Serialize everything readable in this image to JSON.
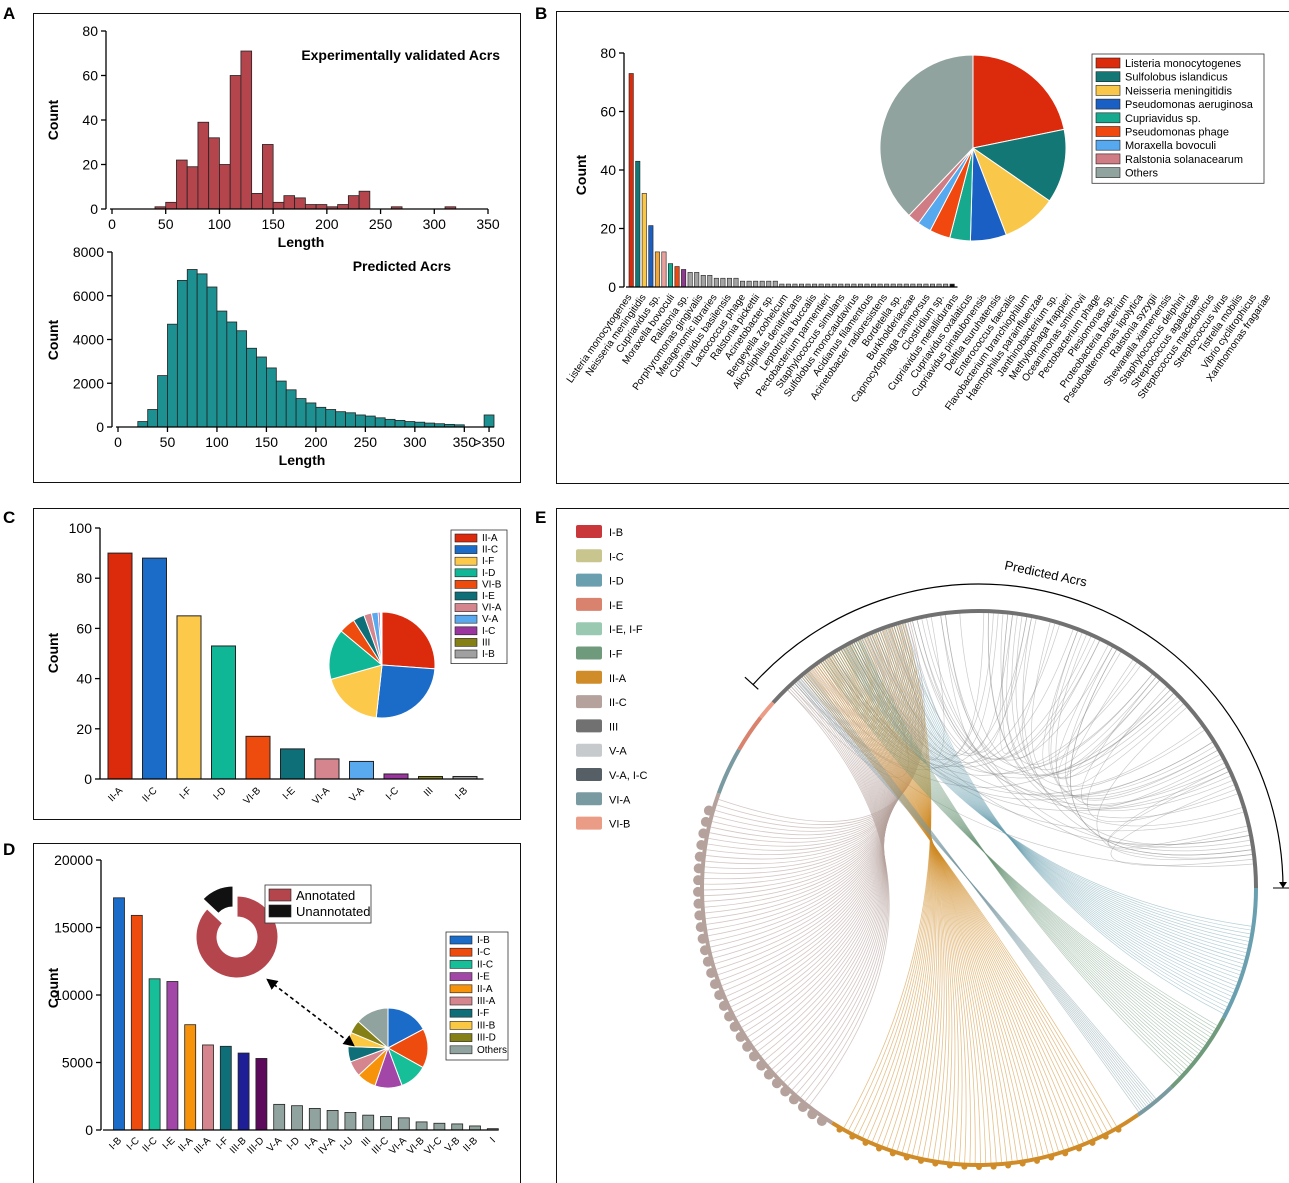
{
  "panel_letters": {
    "a": "A",
    "b": "B",
    "c": "C",
    "d": "D",
    "e": "E"
  },
  "chart_data": [
    {
      "id": "A_top",
      "type": "bar",
      "title": "Experimentally validated Acrs",
      "xlabel": "Length",
      "ylabel": "Count",
      "xlim": [
        0,
        350
      ],
      "ylim": [
        0,
        80
      ],
      "xticks": [
        0,
        50,
        100,
        150,
        200,
        250,
        300,
        350
      ],
      "yticks": [
        0,
        20,
        40,
        60,
        80
      ],
      "bin_width": 10,
      "color": "#b5454d",
      "bins": [
        {
          "start": 40,
          "value": 1
        },
        {
          "start": 50,
          "value": 3
        },
        {
          "start": 60,
          "value": 22
        },
        {
          "start": 70,
          "value": 19
        },
        {
          "start": 80,
          "value": 39
        },
        {
          "start": 90,
          "value": 32
        },
        {
          "start": 100,
          "value": 20
        },
        {
          "start": 110,
          "value": 60
        },
        {
          "start": 120,
          "value": 71
        },
        {
          "start": 130,
          "value": 7
        },
        {
          "start": 140,
          "value": 29
        },
        {
          "start": 150,
          "value": 3
        },
        {
          "start": 160,
          "value": 6
        },
        {
          "start": 170,
          "value": 5
        },
        {
          "start": 180,
          "value": 2
        },
        {
          "start": 190,
          "value": 2
        },
        {
          "start": 200,
          "value": 1
        },
        {
          "start": 210,
          "value": 2
        },
        {
          "start": 220,
          "value": 6
        },
        {
          "start": 230,
          "value": 8
        },
        {
          "start": 260,
          "value": 1
        },
        {
          "start": 310,
          "value": 1
        }
      ]
    },
    {
      "id": "A_bottom",
      "type": "bar",
      "title": "Predicted Acrs",
      "xlabel": "Length",
      "ylabel": "Count",
      "xlim": [
        0,
        380
      ],
      "ylim": [
        0,
        8000
      ],
      "xticks": [
        0,
        50,
        100,
        150,
        200,
        250,
        300,
        350
      ],
      "overflow_tick": ">350",
      "yticks": [
        0,
        2000,
        4000,
        6000,
        8000
      ],
      "bin_width": 10,
      "color": "#1d9191",
      "bins": [
        {
          "start": 20,
          "value": 250
        },
        {
          "start": 30,
          "value": 800
        },
        {
          "start": 40,
          "value": 2350
        },
        {
          "start": 50,
          "value": 4700
        },
        {
          "start": 60,
          "value": 6700
        },
        {
          "start": 70,
          "value": 7200
        },
        {
          "start": 80,
          "value": 7000
        },
        {
          "start": 90,
          "value": 6400
        },
        {
          "start": 100,
          "value": 5300
        },
        {
          "start": 110,
          "value": 4800
        },
        {
          "start": 120,
          "value": 4400
        },
        {
          "start": 130,
          "value": 3600
        },
        {
          "start": 140,
          "value": 3200
        },
        {
          "start": 150,
          "value": 2700
        },
        {
          "start": 160,
          "value": 2100
        },
        {
          "start": 170,
          "value": 1700
        },
        {
          "start": 180,
          "value": 1300
        },
        {
          "start": 190,
          "value": 1100
        },
        {
          "start": 200,
          "value": 900
        },
        {
          "start": 210,
          "value": 800
        },
        {
          "start": 220,
          "value": 700
        },
        {
          "start": 230,
          "value": 650
        },
        {
          "start": 240,
          "value": 550
        },
        {
          "start": 250,
          "value": 500
        },
        {
          "start": 260,
          "value": 420
        },
        {
          "start": 270,
          "value": 350
        },
        {
          "start": 280,
          "value": 300
        },
        {
          "start": 290,
          "value": 250
        },
        {
          "start": 300,
          "value": 220
        },
        {
          "start": 310,
          "value": 180
        },
        {
          "start": 320,
          "value": 150
        },
        {
          "start": 330,
          "value": 120
        },
        {
          "start": 340,
          "value": 100
        },
        {
          "start": 370,
          "value": 550
        }
      ]
    },
    {
      "id": "B",
      "type": "bar",
      "ylabel": "Count",
      "ylim": [
        0,
        80
      ],
      "yticks": [
        0,
        20,
        40,
        60,
        80
      ],
      "bars": [
        {
          "name": "Listeria monocytogenes",
          "value": 73,
          "color": "#dc2a0d"
        },
        {
          "name": "Sulfolobus islandicus",
          "value": 43,
          "color": "#137775"
        },
        {
          "name": "Neisseria meningitidis",
          "value": 32,
          "color": "#f9c84a"
        },
        {
          "name": "Pseudomonas aeruginosa",
          "value": 21,
          "color": "#1a60c4"
        },
        {
          "name": "Cupriavidus sp.",
          "value": 12,
          "color": "#f0a73b"
        },
        {
          "name": "Pseudomonas phage",
          "value": 12,
          "color": "#e7a09c"
        },
        {
          "name": "Moraxella bovoculi",
          "value": 8,
          "color": "#16a98e"
        },
        {
          "name": "Ralstonia solanacearum",
          "value": 7,
          "color": "#f0480e"
        },
        {
          "name": "Ralstonia sp.",
          "value": 6,
          "color": "#8d3b8e"
        },
        {
          "name": "Porphyromonas gingivalis",
          "value": 5,
          "color": "#a3a3a3"
        },
        {
          "name": "Metagenomic libraries",
          "value": 5,
          "color": "#a3a3a3"
        },
        {
          "name": "Cupriavidus basilensis",
          "value": 4,
          "color": "#a3a3a3"
        },
        {
          "name": "Lactococcus phage",
          "value": 4,
          "color": "#a3a3a3"
        },
        {
          "name": "Ralstonia pickettii",
          "value": 3,
          "color": "#a3a3a3"
        },
        {
          "name": "Acinetobacter sp.",
          "value": 3,
          "color": "#a3a3a3"
        },
        {
          "name": "Bergeyella zoohelcum",
          "value": 3,
          "color": "#a3a3a3"
        },
        {
          "name": "Alicycliphilus denitrificans",
          "value": 3,
          "color": "#a3a3a3"
        },
        {
          "name": "Leptotrichia buccalis",
          "value": 2,
          "color": "#a3a3a3"
        },
        {
          "name": "Pectobacterium parmentieri",
          "value": 2,
          "color": "#a3a3a3"
        },
        {
          "name": "Staphylococcus simulans",
          "value": 2,
          "color": "#a3a3a3"
        },
        {
          "name": "Sulfolobus monocaudavirus",
          "value": 2,
          "color": "#a3a3a3"
        },
        {
          "name": "Acidianus filamentous",
          "value": 2,
          "color": "#a3a3a3"
        },
        {
          "name": "Acinetobacter radioresistens",
          "value": 2,
          "color": "#a3a3a3"
        },
        {
          "name": "Bordetella sp.",
          "value": 1,
          "color": "#a3a3a3"
        },
        {
          "name": "Burkholderiaceae",
          "value": 1,
          "color": "#a3a3a3"
        },
        {
          "name": "Capnocytophaga canimorsus",
          "value": 1,
          "color": "#a3a3a3"
        },
        {
          "name": "Clostridium sp.",
          "value": 1,
          "color": "#a3a3a3"
        },
        {
          "name": "Cupriavidus metallidurans",
          "value": 1,
          "color": "#a3a3a3"
        },
        {
          "name": "Cupriavidus oxalaticus",
          "value": 1,
          "color": "#a3a3a3"
        },
        {
          "name": "Cupriavidus pinatubonensis",
          "value": 1,
          "color": "#a3a3a3"
        },
        {
          "name": "Delftia tsuruhatensis",
          "value": 1,
          "color": "#a3a3a3"
        },
        {
          "name": "Enterococcus faecalis",
          "value": 1,
          "color": "#a3a3a3"
        },
        {
          "name": "Flavobacterium branchiophilum",
          "value": 1,
          "color": "#a3a3a3"
        },
        {
          "name": "Haemophilus parainfluenzae",
          "value": 1,
          "color": "#a3a3a3"
        },
        {
          "name": "Janthinobacterium sp.",
          "value": 1,
          "color": "#a3a3a3"
        },
        {
          "name": "Methylophaga frappieri",
          "value": 1,
          "color": "#a3a3a3"
        },
        {
          "name": "Oceanimonas smirnovii",
          "value": 1,
          "color": "#a3a3a3"
        },
        {
          "name": "Pectobacterium phage",
          "value": 1,
          "color": "#a3a3a3"
        },
        {
          "name": "Plesiomonas sp.",
          "value": 1,
          "color": "#a3a3a3"
        },
        {
          "name": "Proteobacteria bacterium",
          "value": 1,
          "color": "#a3a3a3"
        },
        {
          "name": "Pseudoalteromonas lipolytica",
          "value": 1,
          "color": "#a3a3a3"
        },
        {
          "name": "Ralstonia syzygii",
          "value": 1,
          "color": "#a3a3a3"
        },
        {
          "name": "Shewanella xiamenensis",
          "value": 1,
          "color": "#a3a3a3"
        },
        {
          "name": "Staphylococcus delphini",
          "value": 1,
          "color": "#a3a3a3"
        },
        {
          "name": "Streptococcus agalactiae",
          "value": 1,
          "color": "#a3a3a3"
        },
        {
          "name": "Streptococcus macedonicus",
          "value": 1,
          "color": "#a3a3a3"
        },
        {
          "name": "Streptococcus virus",
          "value": 1,
          "color": "#a3a3a3"
        },
        {
          "name": "Tistrella mobilis",
          "value": 1,
          "color": "#a3a3a3"
        },
        {
          "name": "Vibrio cyclitrophicus",
          "value": 1,
          "color": "#a3a3a3"
        },
        {
          "name": "Xanthomonas fragariae",
          "value": 1,
          "color": "#111111"
        }
      ],
      "tick_labels": [
        "Listeria monocytogenes",
        "Neisseria meningitidis",
        "Cupriavidus sp.",
        "Moraxella bovoculi",
        "Ralstonia sp.",
        "Porphyromonas gingivalis",
        "Metagenomic libraries",
        "Cupriavidus basilensis",
        "Lactococcus phage",
        "Ralstonia pickettii",
        "Acinetobacter sp.",
        "Bergeyella zoohelcum",
        "Alicycliphilus denitrificans",
        "Leptotrichia buccalis",
        "Pectobacterium parmentieri",
        "Staphylococcus simulans",
        "Sulfolobus monocaudavirus",
        "Acidianus filamentous",
        "Acinetobacter radioresistens",
        "Bordetella sp.",
        "Burkholderiaceae",
        "Capnocytophaga canimorsus",
        "Clostridium sp.",
        "Cupriavidus metallidurans",
        "Cupriavidus oxalaticus",
        "Cupriavidus pinatubonensis",
        "Delftia tsuruhatensis",
        "Enterococcus faecalis",
        "Flavobacterium branchiophilum",
        "Haemophilus parainfluenzae",
        "Janthinobacterium sp.",
        "Methylophaga frappieri",
        "Oceanimonas smirnovii",
        "Pectobacterium phage",
        "Plesiomonas sp.",
        "Proteobacteria bacterium",
        "Pseudoalteromonas lipolytica",
        "Ralstonia syzygii",
        "Shewanella xiamenensis",
        "Staphylococcus delphini",
        "Streptococcus agalactiae",
        "Streptococcus macedonicus",
        "Streptococcus virus",
        "Tistrella mobilis",
        "Vibrio cyclitrophicus",
        "Xanthomonas fragariae"
      ],
      "pie": [
        {
          "name": "Listeria monocytogenes",
          "value": 73,
          "color": "#dc2a0d"
        },
        {
          "name": "Sulfolobus islandicus",
          "value": 43,
          "color": "#137775"
        },
        {
          "name": "Neisseria meningitidis",
          "value": 32,
          "color": "#f9c84a"
        },
        {
          "name": "Pseudomonas aeruginosa",
          "value": 21,
          "color": "#1a60c4"
        },
        {
          "name": "Cupriavidus sp.",
          "value": 12,
          "color": "#16a98e"
        },
        {
          "name": "Pseudomonas phage",
          "value": 12,
          "color": "#f0480e"
        },
        {
          "name": "Moraxella bovoculi",
          "value": 8,
          "color": "#56a8ef"
        },
        {
          "name": "Ralstonia solanacearum",
          "value": 7,
          "color": "#d07c84"
        },
        {
          "name": "Others",
          "value": 127,
          "color": "#91a39e"
        }
      ],
      "legend_placement": "top-right"
    },
    {
      "id": "C",
      "type": "bar",
      "ylabel": "Count",
      "ylim": [
        0,
        100
      ],
      "yticks": [
        0,
        20,
        40,
        60,
        80,
        100
      ],
      "categories": [
        "II-A",
        "II-C",
        "I-F",
        "I-D",
        "VI-B",
        "I-E",
        "VI-A",
        "V-A",
        "I-C",
        "III",
        "I-B"
      ],
      "values": [
        90,
        88,
        65,
        53,
        17,
        12,
        8,
        7,
        2,
        1,
        1
      ],
      "colors": [
        "#dc2a0d",
        "#1a6cc8",
        "#fcc94a",
        "#10b797",
        "#ee4b0f",
        "#0f6f78",
        "#d4858e",
        "#59a9ee",
        "#9a35a0",
        "#858016",
        "#a0a0a0"
      ],
      "legend_placement": "right"
    },
    {
      "id": "D",
      "type": "bar",
      "ylabel": "Count",
      "ylim": [
        0,
        20000
      ],
      "yticks": [
        0,
        5000,
        10000,
        15000,
        20000
      ],
      "categories": [
        "I-B",
        "I-C",
        "II-C",
        "I-E",
        "II-A",
        "III-A",
        "I-F",
        "III-B",
        "III-D",
        "V-A",
        "I-D",
        "I-A",
        "IV-A",
        "I-U",
        "III",
        "III-C",
        "VI-A",
        "VI-B",
        "VI-C",
        "V-B",
        "II-B",
        "I"
      ],
      "values": [
        17200,
        15900,
        11200,
        11000,
        7800,
        6300,
        6200,
        5700,
        5300,
        1900,
        1800,
        1600,
        1450,
        1300,
        1100,
        1000,
        900,
        600,
        500,
        450,
        300,
        100
      ],
      "colors": [
        "#1a6cc8",
        "#ee4b0f",
        "#16bf98",
        "#a247a8",
        "#f7920b",
        "#d4858e",
        "#0f6f78",
        "#1e1f96",
        "#5e0a5c",
        "#91a39e",
        "#91a39e",
        "#91a39e",
        "#91a39e",
        "#91a39e",
        "#91a39e",
        "#91a39e",
        "#91a39e",
        "#91a39e",
        "#91a39e",
        "#91a39e",
        "#91a39e",
        "#91a39e"
      ],
      "donut": [
        {
          "name": "Annotated",
          "value": 87,
          "color": "#b5454d"
        },
        {
          "name": "Unannotated",
          "value": 13,
          "color": "#111111"
        }
      ],
      "pie": [
        {
          "name": "I-B",
          "value": 17.2,
          "color": "#1a6cc8"
        },
        {
          "name": "I-C",
          "value": 15.9,
          "color": "#ee4b0f"
        },
        {
          "name": "II-C",
          "value": 11.2,
          "color": "#16bf98"
        },
        {
          "name": "I-E",
          "value": 11.0,
          "color": "#a247a8"
        },
        {
          "name": "II-A",
          "value": 7.8,
          "color": "#f7920b"
        },
        {
          "name": "III-A",
          "value": 6.3,
          "color": "#d4858e"
        },
        {
          "name": "I-F",
          "value": 6.2,
          "color": "#0f6f78"
        },
        {
          "name": "III-B",
          "value": 5.7,
          "color": "#fbc842"
        },
        {
          "name": "III-D",
          "value": 5.3,
          "color": "#858016"
        },
        {
          "name": "Others",
          "value": 13.4,
          "color": "#91a39e"
        }
      ]
    },
    {
      "id": "E",
      "type": "other",
      "title": "Predicted Acrs",
      "legend": [
        {
          "name": "I-B",
          "color": "#c9373a"
        },
        {
          "name": "I-C",
          "color": "#c8c58e"
        },
        {
          "name": "I-D",
          "color": "#6a9fb0"
        },
        {
          "name": "I-E",
          "color": "#d9826d"
        },
        {
          "name": "I-E, I-F",
          "color": "#9ac9b2"
        },
        {
          "name": "I-F",
          "color": "#6f9a7c"
        },
        {
          "name": "II-A",
          "color": "#cf8c28"
        },
        {
          "name": "II-C",
          "color": "#b5a29c"
        },
        {
          "name": "III",
          "color": "#717171"
        },
        {
          "name": "V-A",
          "color": "#c6cacc"
        },
        {
          "name": "V-A, I-C",
          "color": "#565e66"
        },
        {
          "name": "VI-A",
          "color": "#7a9aa1"
        },
        {
          "name": "VI-B",
          "color": "#eb9c87"
        }
      ]
    }
  ]
}
